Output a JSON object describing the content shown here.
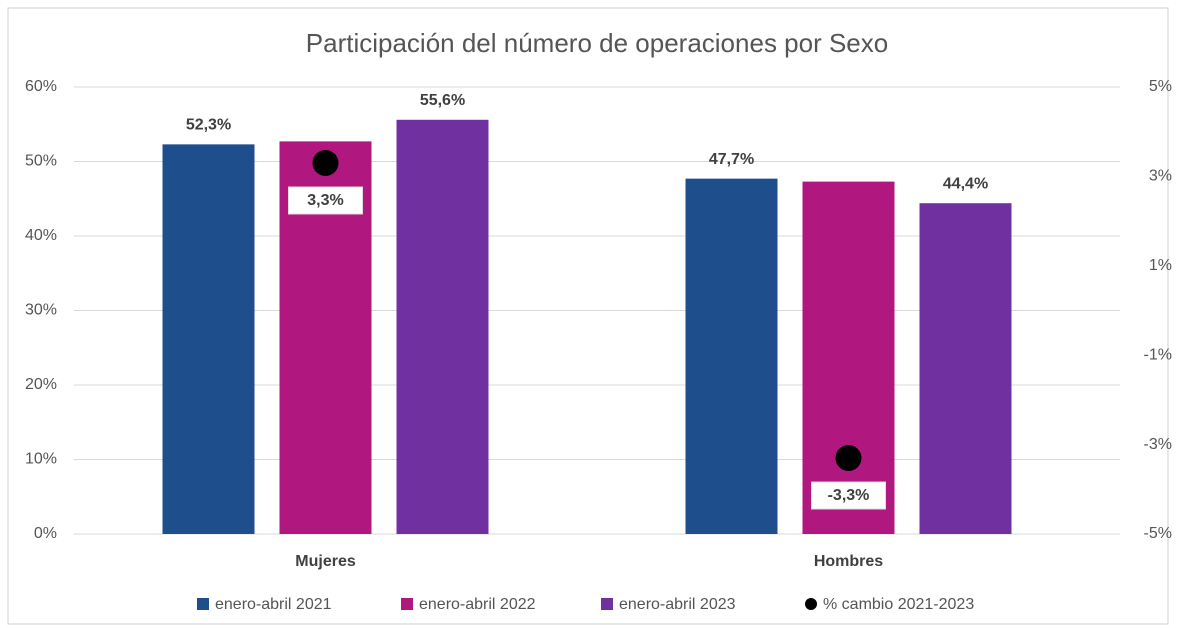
{
  "chart_data": {
    "type": "bar",
    "title": "Participación del número de operaciones por Sexo",
    "categories": [
      "Mujeres",
      "Hombres"
    ],
    "series": [
      {
        "name": "enero-abril 2021",
        "color": "#1f4e8c",
        "values": [
          52.3,
          47.7
        ],
        "value_labels": [
          "52,3%",
          "47,7%"
        ]
      },
      {
        "name": "enero-abril 2022",
        "color": "#b0177f",
        "values": [
          52.7,
          47.3
        ]
      },
      {
        "name": "enero-abril 2023",
        "color": "#7030a0",
        "values": [
          55.6,
          44.4
        ],
        "value_labels": [
          "55,6%",
          "44,4%"
        ]
      },
      {
        "name": "% cambio 2021-2023",
        "type": "scatter",
        "axis": "y2",
        "color": "#000000",
        "values": [
          3.3,
          -3.3
        ],
        "value_labels": [
          "3,3%",
          "-3,3%"
        ]
      }
    ],
    "ylim": [
      0,
      60
    ],
    "yticks": [
      {
        "value": 0,
        "label": "0%"
      },
      {
        "value": 10,
        "label": "10%"
      },
      {
        "value": 20,
        "label": "20%"
      },
      {
        "value": 30,
        "label": "30%"
      },
      {
        "value": 40,
        "label": "40%"
      },
      {
        "value": 50,
        "label": "50%"
      },
      {
        "value": 60,
        "label": "60%"
      }
    ],
    "y2lim": [
      -5,
      5
    ],
    "y2ticks": [
      {
        "value": -5,
        "label": "-5%"
      },
      {
        "value": -3,
        "label": "-3%"
      },
      {
        "value": -1,
        "label": "-1%"
      },
      {
        "value": 1,
        "label": "1%"
      },
      {
        "value": 3,
        "label": "3%"
      },
      {
        "value": 5,
        "label": "5%"
      }
    ],
    "grid": true,
    "legend": "bottom"
  }
}
